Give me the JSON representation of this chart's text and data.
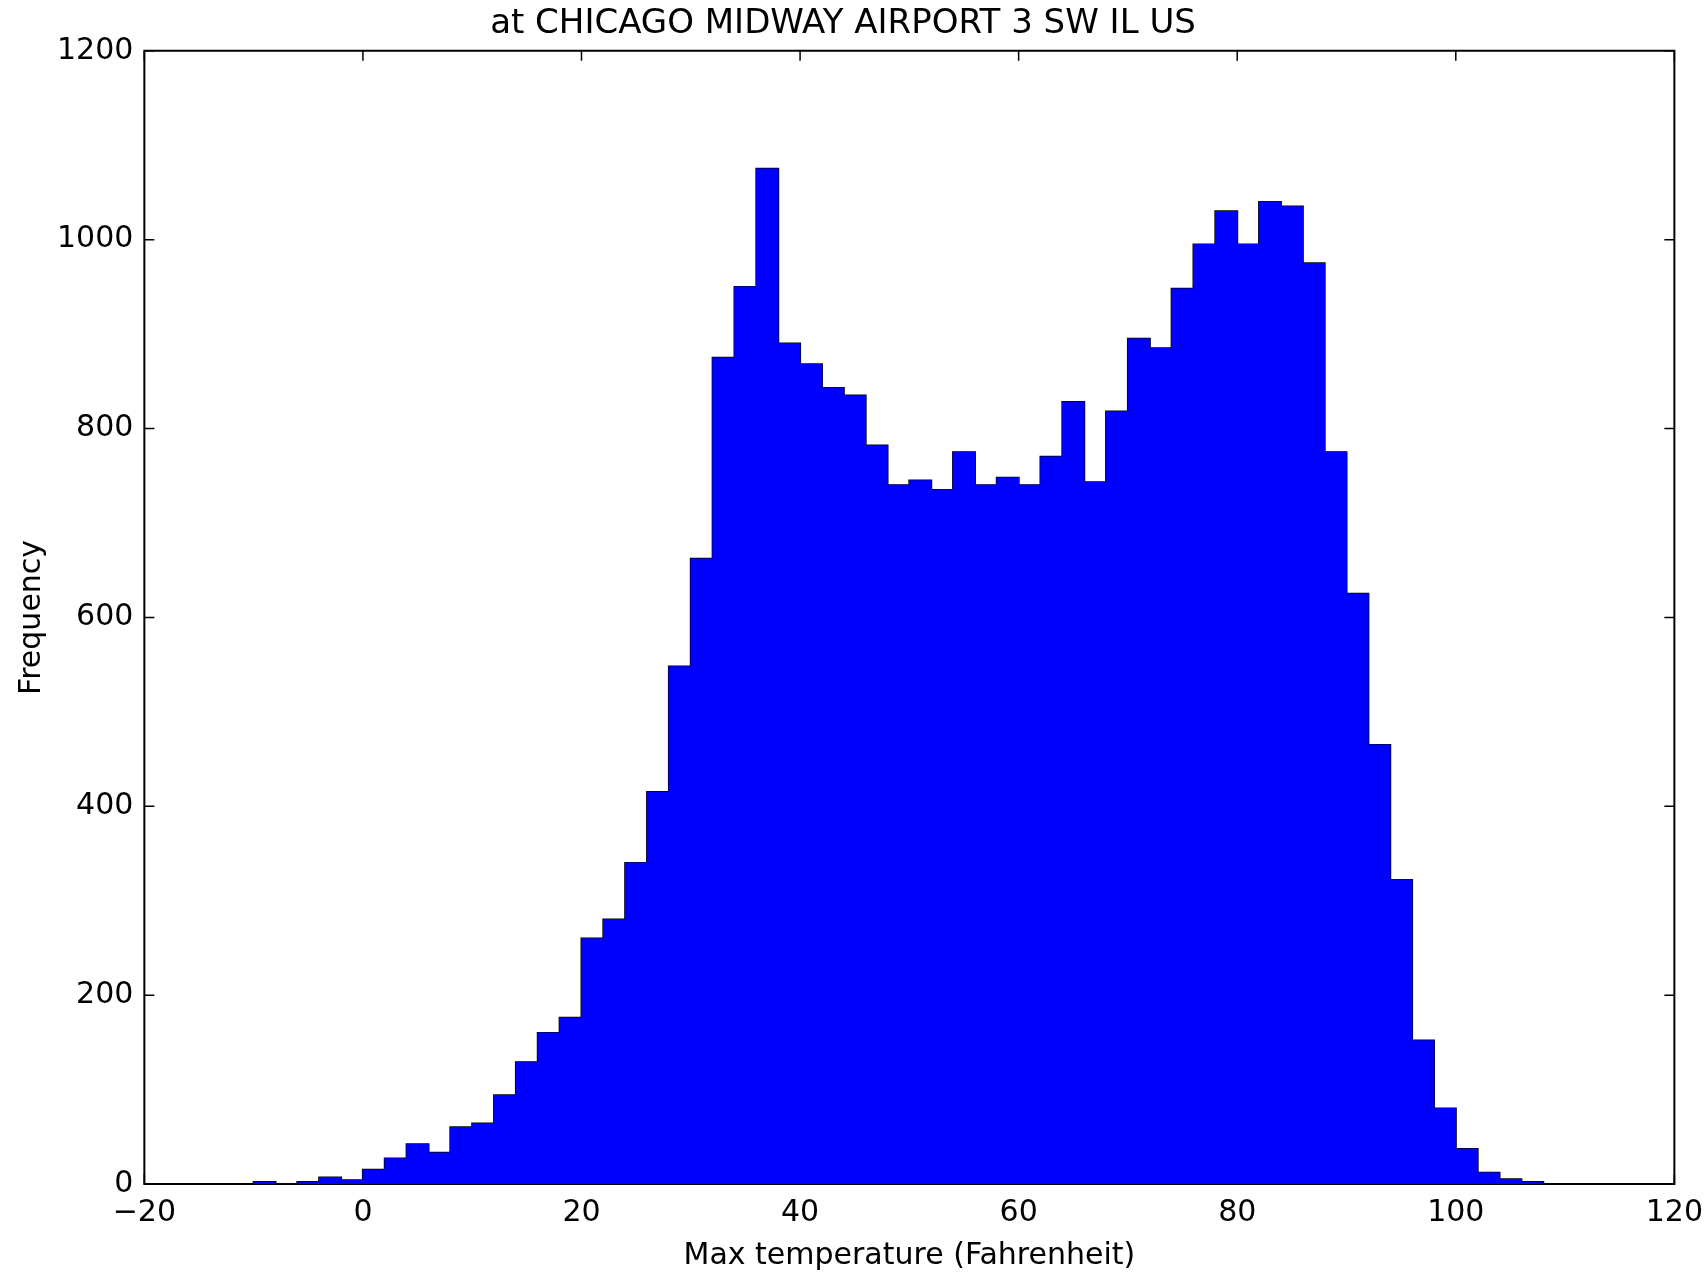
{
  "chart_data": {
    "type": "histogram",
    "title": "at CHICAGO MIDWAY AIRPORT 3 SW IL US",
    "xlabel": "Max temperature (Fahrenheit)",
    "ylabel": "Frequency",
    "color": "#0000ff",
    "bins": [
      -10,
      -8,
      -6,
      -4,
      -2,
      0,
      2,
      4,
      6,
      8,
      10,
      12,
      14,
      16,
      18,
      20,
      22,
      24,
      26,
      28,
      30,
      32,
      34,
      36,
      38,
      40,
      42,
      44,
      46,
      48,
      50,
      52,
      54,
      56,
      58,
      60,
      62,
      64,
      66,
      68,
      70,
      72,
      74,
      76,
      78,
      80,
      82,
      84,
      86,
      88,
      90,
      92,
      94,
      96,
      98,
      100,
      102,
      104,
      106,
      108
    ],
    "values": [
      2,
      0,
      2,
      7,
      4,
      15,
      27,
      42,
      33,
      60,
      64,
      94,
      129,
      160,
      176,
      260,
      280,
      340,
      415,
      548,
      662,
      875,
      950,
      1075,
      890,
      868,
      843,
      835,
      782,
      740,
      745,
      735,
      775,
      740,
      748,
      740,
      770,
      828,
      743,
      818,
      895,
      885,
      948,
      995,
      1030,
      995,
      1040,
      1035,
      975,
      775,
      625,
      465,
      322,
      152,
      80,
      37,
      12,
      5,
      2
    ],
    "xlim": [
      -20,
      120
    ],
    "xticks": [
      -20,
      0,
      20,
      40,
      60,
      80,
      100,
      120
    ],
    "ylim": [
      0,
      1200
    ],
    "yticks": [
      0,
      200,
      400,
      600,
      800,
      1000,
      1200
    ]
  }
}
